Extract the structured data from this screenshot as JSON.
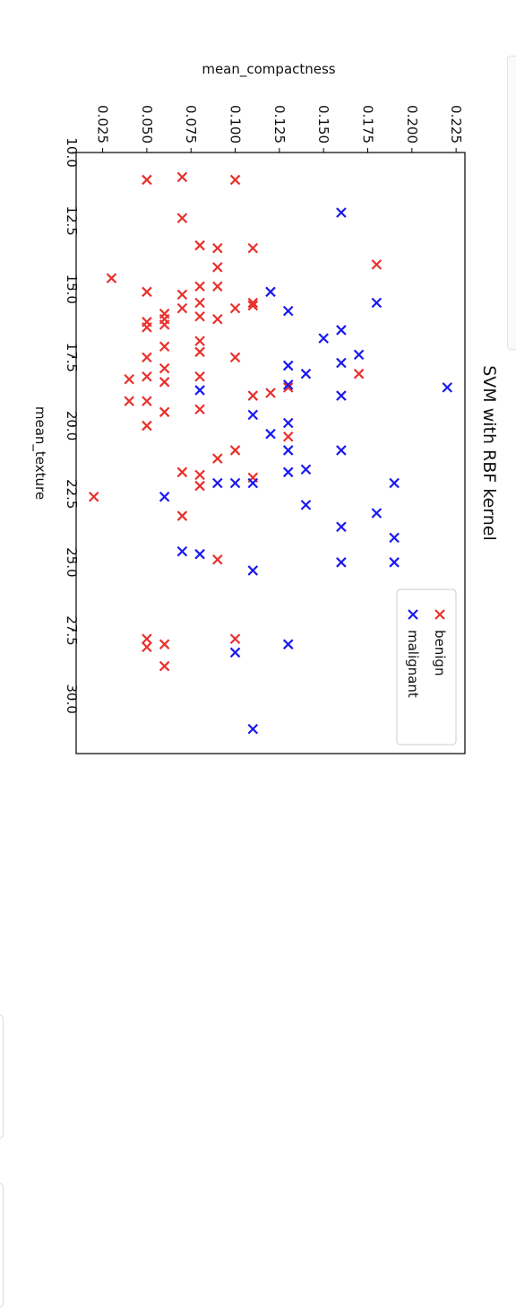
{
  "chart_data": {
    "type": "scatter",
    "title": "SVM with RBF kernel",
    "xlabel": "mean_texture",
    "ylabel": "mean_compactness",
    "xlim": [
      10.0,
      32.0
    ],
    "ylim": [
      0.01,
      0.23
    ],
    "x_ticks": [
      "10.0",
      "12.5",
      "15.0",
      "17.5",
      "20.0",
      "22.5",
      "25.0",
      "27.5",
      "30.0"
    ],
    "y_ticks": [
      "0.025",
      "0.050",
      "0.075",
      "0.100",
      "0.125",
      "0.150",
      "0.175",
      "0.200",
      "0.225"
    ],
    "legend_position": "lower-right",
    "marker": "x",
    "grid": false,
    "colors": {
      "benign": "#e8302c",
      "malignant": "#1a1aef"
    },
    "series": [
      {
        "name": "benign",
        "color": "#e8302c",
        "points": [
          [
            11.0,
            0.05
          ],
          [
            10.9,
            0.07
          ],
          [
            11.0,
            0.1
          ],
          [
            12.4,
            0.07
          ],
          [
            13.4,
            0.08
          ],
          [
            13.5,
            0.09
          ],
          [
            13.5,
            0.11
          ],
          [
            14.2,
            0.09
          ],
          [
            14.1,
            0.18
          ],
          [
            14.6,
            0.03
          ],
          [
            14.9,
            0.08
          ],
          [
            14.9,
            0.09
          ],
          [
            15.1,
            0.05
          ],
          [
            15.2,
            0.07
          ],
          [
            15.5,
            0.08
          ],
          [
            15.5,
            0.11
          ],
          [
            15.6,
            0.11
          ],
          [
            15.7,
            0.07
          ],
          [
            15.7,
            0.1
          ],
          [
            15.9,
            0.06
          ],
          [
            16.0,
            0.08
          ],
          [
            16.1,
            0.06
          ],
          [
            16.2,
            0.05
          ],
          [
            16.1,
            0.09
          ],
          [
            16.3,
            0.06
          ],
          [
            16.4,
            0.05
          ],
          [
            16.9,
            0.08
          ],
          [
            17.1,
            0.06
          ],
          [
            17.3,
            0.08
          ],
          [
            17.5,
            0.05
          ],
          [
            17.5,
            0.1
          ],
          [
            17.9,
            0.06
          ],
          [
            18.1,
            0.17
          ],
          [
            18.2,
            0.05
          ],
          [
            18.2,
            0.08
          ],
          [
            18.3,
            0.04
          ],
          [
            18.4,
            0.06
          ],
          [
            18.6,
            0.13
          ],
          [
            18.9,
            0.11
          ],
          [
            18.8,
            0.12
          ],
          [
            19.1,
            0.04
          ],
          [
            19.1,
            0.05
          ],
          [
            19.4,
            0.08
          ],
          [
            19.5,
            0.06
          ],
          [
            20.0,
            0.05
          ],
          [
            20.4,
            0.13
          ],
          [
            20.9,
            0.1
          ],
          [
            21.2,
            0.09
          ],
          [
            21.7,
            0.07
          ],
          [
            21.8,
            0.08
          ],
          [
            21.9,
            0.11
          ],
          [
            22.2,
            0.08
          ],
          [
            22.6,
            0.02
          ],
          [
            23.3,
            0.07
          ],
          [
            24.9,
            0.09
          ],
          [
            27.8,
            0.05
          ],
          [
            27.8,
            0.1
          ],
          [
            28.1,
            0.05
          ],
          [
            28.0,
            0.06
          ],
          [
            28.8,
            0.06
          ]
        ]
      },
      {
        "name": "malignant",
        "color": "#1a1aef",
        "points": [
          [
            12.2,
            0.16
          ],
          [
            15.1,
            0.12
          ],
          [
            15.5,
            0.18
          ],
          [
            15.8,
            0.13
          ],
          [
            16.5,
            0.16
          ],
          [
            16.8,
            0.15
          ],
          [
            17.4,
            0.17
          ],
          [
            17.7,
            0.16
          ],
          [
            17.8,
            0.13
          ],
          [
            18.1,
            0.14
          ],
          [
            18.5,
            0.13
          ],
          [
            18.6,
            0.22
          ],
          [
            18.7,
            0.08
          ],
          [
            18.9,
            0.16
          ],
          [
            19.6,
            0.11
          ],
          [
            19.9,
            0.13
          ],
          [
            20.3,
            0.12
          ],
          [
            20.9,
            0.13
          ],
          [
            20.9,
            0.16
          ],
          [
            21.6,
            0.14
          ],
          [
            21.7,
            0.13
          ],
          [
            22.1,
            0.09
          ],
          [
            22.1,
            0.1
          ],
          [
            22.1,
            0.11
          ],
          [
            22.1,
            0.19
          ],
          [
            22.6,
            0.06
          ],
          [
            22.9,
            0.14
          ],
          [
            23.2,
            0.18
          ],
          [
            23.7,
            0.16
          ],
          [
            24.1,
            0.19
          ],
          [
            24.6,
            0.07
          ],
          [
            24.7,
            0.08
          ],
          [
            25.0,
            0.16
          ],
          [
            25.0,
            0.19
          ],
          [
            25.3,
            0.11
          ],
          [
            28.0,
            0.13
          ],
          [
            28.3,
            0.1
          ],
          [
            31.1,
            0.11
          ]
        ]
      }
    ]
  }
}
